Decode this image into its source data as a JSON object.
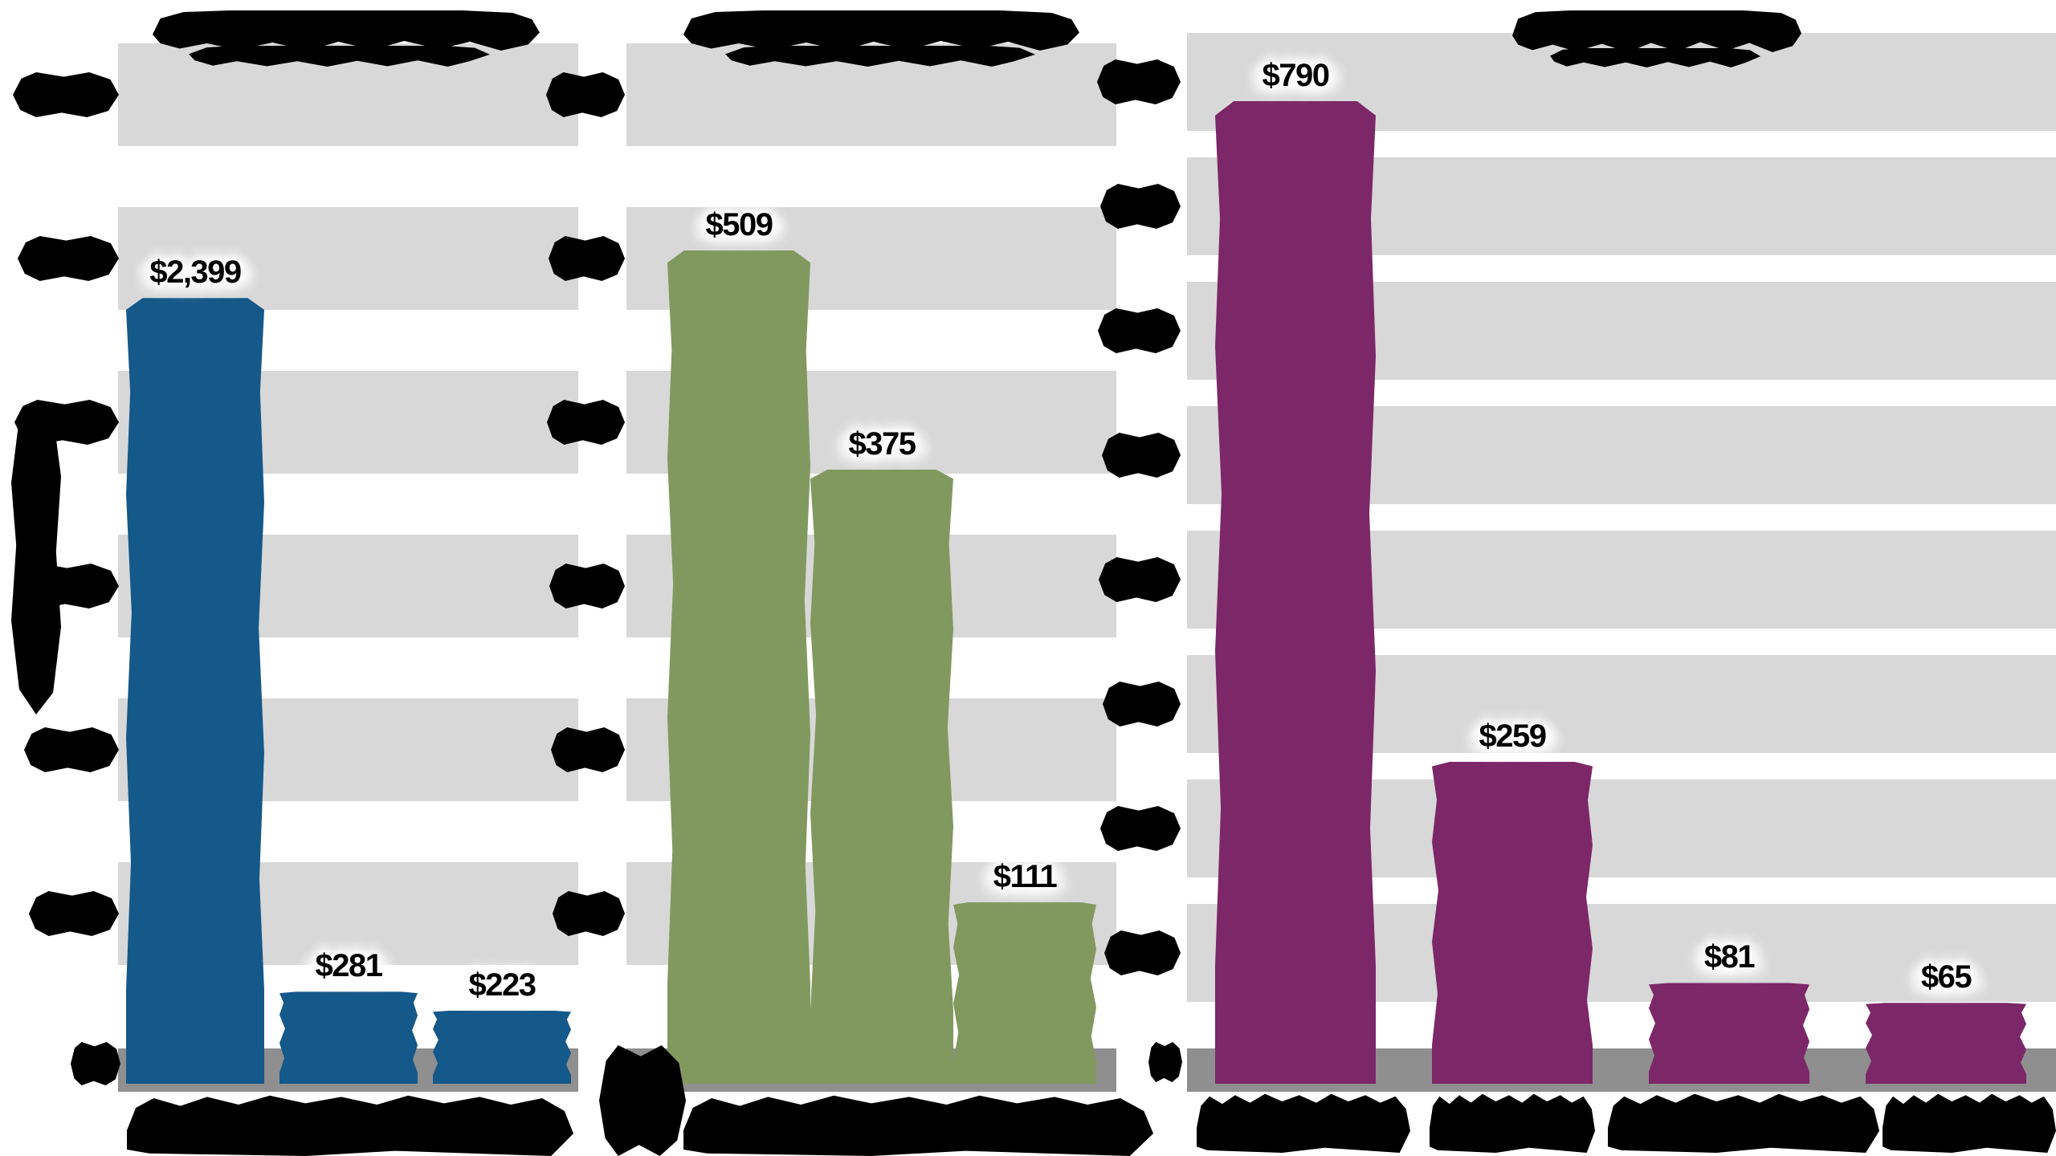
{
  "chart_data": [
    {
      "type": "bar",
      "panel_position": "left",
      "title_text": "",
      "title_legible": false,
      "categories": [
        "",
        "",
        ""
      ],
      "category_labels_legible": false,
      "values": [
        2399,
        281,
        223
      ],
      "value_labels": [
        "$2,399",
        "$281",
        "$223"
      ],
      "ylim": [
        0,
        3000
      ],
      "ytick_step": 500,
      "grid": "horizontal-bands",
      "legend": "none",
      "bar_color": "#15588a"
    },
    {
      "type": "bar",
      "panel_position": "middle",
      "title_text": "",
      "title_legible": false,
      "categories": [
        "",
        "",
        ""
      ],
      "category_labels_legible": false,
      "values": [
        509,
        375,
        111
      ],
      "value_labels": [
        "$509",
        "$375",
        "$111"
      ],
      "ylim": [
        0,
        600
      ],
      "ytick_step": 100,
      "grid": "horizontal-bands",
      "legend": "none",
      "bar_color": "#81995f"
    },
    {
      "type": "bar",
      "panel_position": "right",
      "title_text": "",
      "title_legible": false,
      "categories": [
        "",
        "",
        "",
        ""
      ],
      "category_labels_legible": false,
      "values": [
        790,
        259,
        81,
        65
      ],
      "value_labels": [
        "$790",
        "$259",
        "$81",
        "$65"
      ],
      "ylim": [
        0,
        800
      ],
      "ytick_step": 100,
      "grid": "horizontal-bands",
      "legend": "none",
      "bar_color": "#7c2768"
    }
  ],
  "colors": {
    "background": "#ffffff",
    "grid_band": "#d8d8d8",
    "axis_band": "#8f8f8f",
    "value_label_text": "#000000",
    "blob_text": "#000000"
  },
  "note": "Source screenshot is heavily degraded: panel titles, y-axis tick labels, y-axis title and x-axis category labels are illegible black blobs; only the dollar value labels above each bar are readable."
}
